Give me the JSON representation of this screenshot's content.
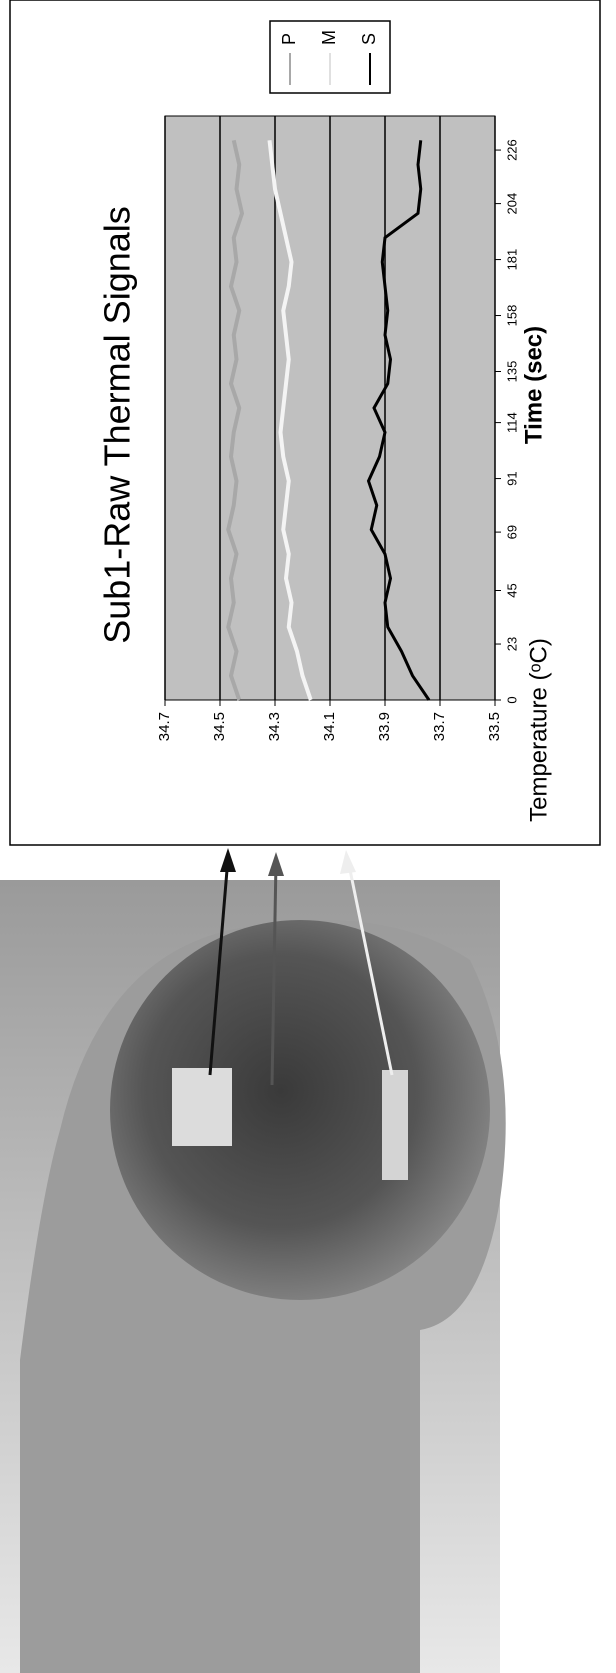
{
  "chart_data": {
    "type": "line",
    "title": "Sub1-Raw Thermal Signals",
    "xlabel": "Time (sec)",
    "ylabel": "Temperature (ᵒC)",
    "x": [
      0,
      10,
      20,
      30,
      40,
      50,
      60,
      70,
      80,
      90,
      100,
      110,
      120,
      130,
      140,
      150,
      160,
      170,
      180,
      190,
      200,
      210,
      220,
      230
    ],
    "series": [
      {
        "name": "P",
        "color": "#a8a8a8",
        "values": [
          34.43,
          34.46,
          34.44,
          34.47,
          34.45,
          34.46,
          34.44,
          34.47,
          34.45,
          34.44,
          34.46,
          34.45,
          34.43,
          34.46,
          34.44,
          34.45,
          34.43,
          34.46,
          34.44,
          34.45,
          34.42,
          34.44,
          34.43,
          34.45
        ]
      },
      {
        "name": "M",
        "color": "#f4f4f4",
        "values": [
          34.17,
          34.2,
          34.22,
          34.25,
          34.24,
          34.26,
          34.25,
          34.27,
          34.26,
          34.25,
          34.27,
          34.28,
          34.27,
          34.26,
          34.25,
          34.26,
          34.27,
          34.25,
          34.24,
          34.26,
          34.28,
          34.3,
          34.31,
          34.32
        ]
      },
      {
        "name": "S",
        "color": "#000000",
        "values": [
          33.74,
          33.8,
          33.84,
          33.89,
          33.9,
          33.88,
          33.9,
          33.95,
          33.93,
          33.96,
          33.92,
          33.9,
          33.94,
          33.89,
          33.88,
          33.9,
          33.89,
          33.9,
          33.91,
          33.9,
          33.78,
          33.77,
          33.78,
          33.77
        ]
      }
    ],
    "xlim": [
      0,
      240
    ],
    "xticks": [
      0,
      23,
      45,
      69,
      91,
      114,
      135,
      158,
      181,
      204,
      226
    ],
    "ylim": [
      33.5,
      34.7
    ],
    "yticks": [
      {
        "value": 34.7,
        "label": "34.7"
      },
      {
        "value": 34.5,
        "label": "34.5"
      },
      {
        "value": 34.3,
        "label": "34.3"
      },
      {
        "value": 34.1,
        "label": "34.1"
      },
      {
        "value": 33.9,
        "label": "33.9"
      },
      {
        "value": 33.7,
        "label": "33.7"
      },
      {
        "value": 33.5,
        "label": "33.5"
      }
    ],
    "grid": true,
    "legend": "right",
    "plot_background": "#c0c0c0"
  }
}
